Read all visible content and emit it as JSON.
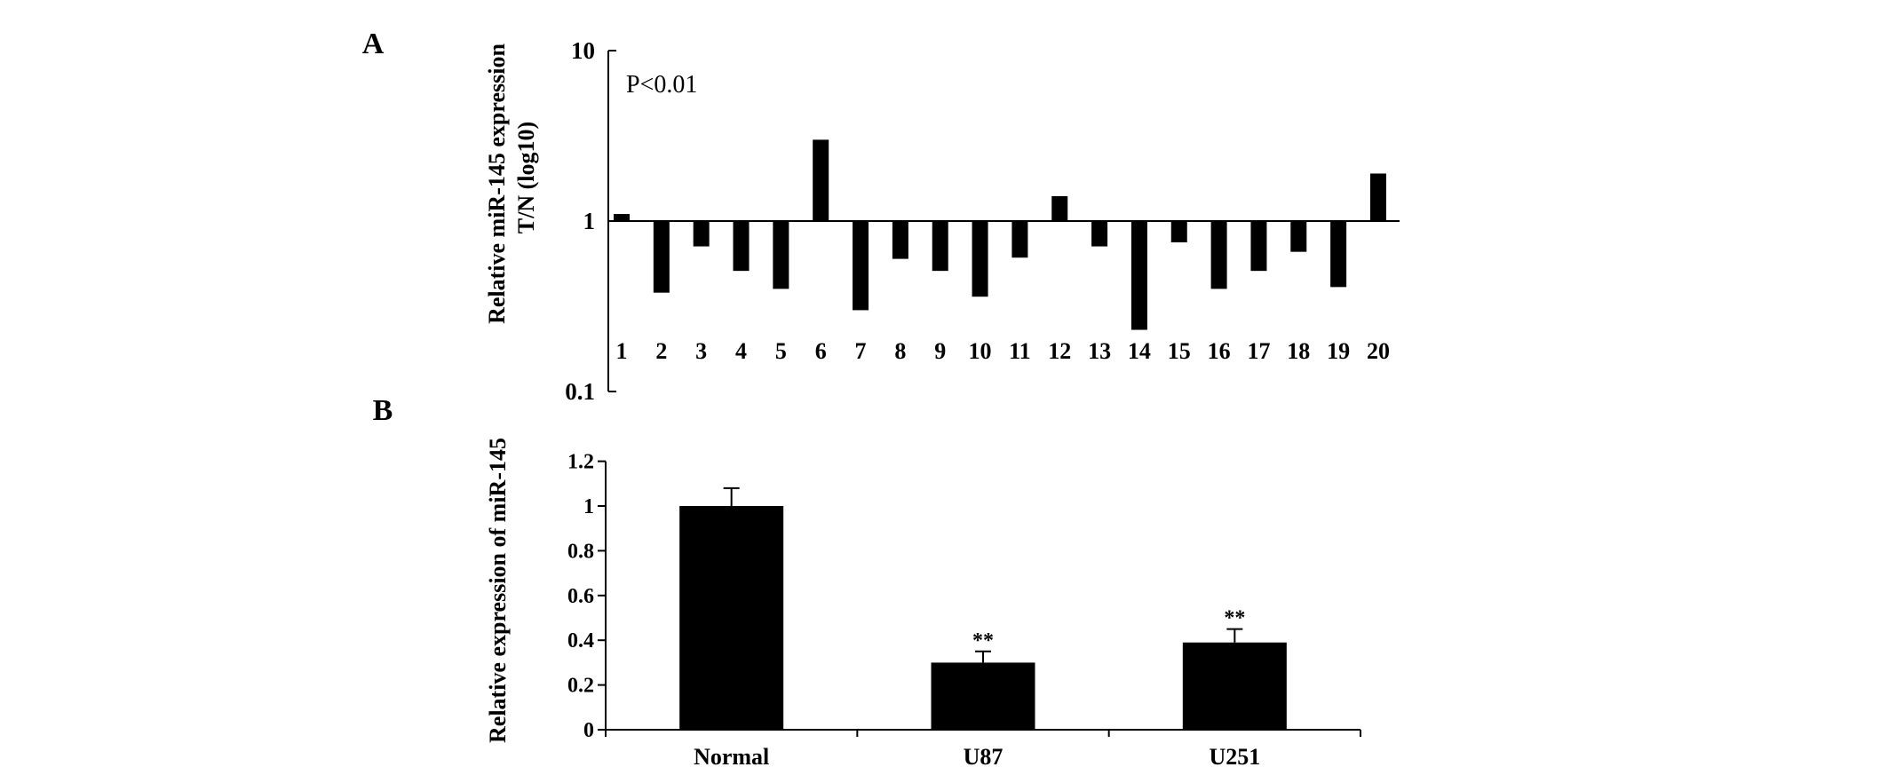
{
  "colors": {
    "bar": "#000000",
    "axis": "#000000",
    "text": "#000000",
    "background": "#ffffff"
  },
  "chart_data": [
    {
      "panel": "A",
      "type": "bar",
      "yscale": "log",
      "categories": [
        "1",
        "2",
        "3",
        "4",
        "5",
        "6",
        "7",
        "8",
        "9",
        "10",
        "11",
        "12",
        "13",
        "14",
        "15",
        "16",
        "17",
        "18",
        "19",
        "20"
      ],
      "values": [
        1.1,
        0.38,
        0.71,
        0.51,
        0.4,
        3.0,
        0.3,
        0.6,
        0.51,
        0.36,
        0.61,
        1.4,
        0.71,
        0.23,
        0.75,
        0.4,
        0.51,
        0.66,
        0.41,
        1.9
      ],
      "baseline": 1,
      "ylabel": [
        "Relative miR-145 expression",
        "T/N (log10)"
      ],
      "ylim": [
        0.1,
        10
      ],
      "yticks": [
        10,
        1,
        0.1
      ],
      "ytick_labels": [
        "10",
        "1",
        "0.1"
      ],
      "annotation": "P<0.01",
      "grid": false
    },
    {
      "panel": "B",
      "type": "bar",
      "categories": [
        "Normal",
        "U87",
        "U251"
      ],
      "values": [
        1.0,
        0.3,
        0.39
      ],
      "errors": [
        0.08,
        0.05,
        0.06
      ],
      "significance": [
        "",
        "**",
        "**"
      ],
      "ylabel": "Relative expression of miR-145",
      "ylim": [
        0,
        1.2
      ],
      "yticks": [
        0,
        0.2,
        0.4,
        0.6,
        0.8,
        1,
        1.2
      ],
      "ytick_labels": [
        "0",
        "0.2",
        "0.4",
        "0.6",
        "0.8",
        "1",
        "1.2"
      ],
      "grid": false
    }
  ]
}
